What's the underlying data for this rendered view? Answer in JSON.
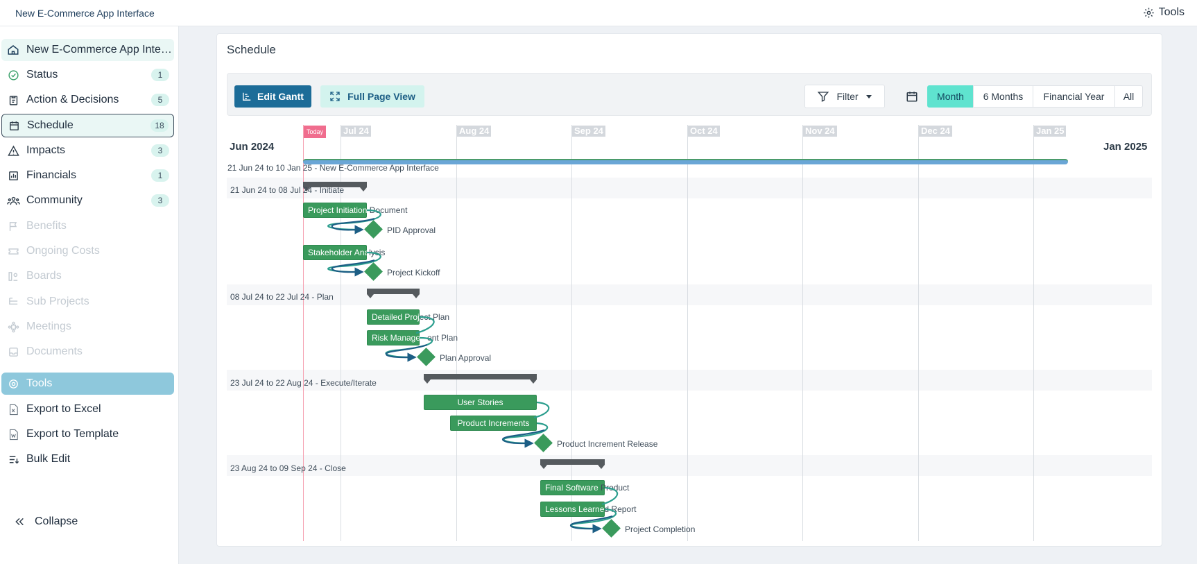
{
  "app": {
    "title": "New E-Commerce App Interface",
    "tools_label": "Tools"
  },
  "sidebar": {
    "items": [
      {
        "label": "New E-Commerce App Interface",
        "icon": "home-icon",
        "badge": ""
      },
      {
        "label": "Status",
        "icon": "check-circle-icon",
        "badge": "1"
      },
      {
        "label": "Action & Decisions",
        "icon": "clipboard-icon",
        "badge": "5"
      },
      {
        "label": "Schedule",
        "icon": "calendar-icon",
        "badge": "18"
      },
      {
        "label": "Impacts",
        "icon": "warning-icon",
        "badge": "3"
      },
      {
        "label": "Financials",
        "icon": "chart-icon",
        "badge": "1"
      },
      {
        "label": "Community",
        "icon": "people-icon",
        "badge": "3"
      },
      {
        "label": "Benefits",
        "icon": "flag-icon",
        "badge": ""
      },
      {
        "label": "Ongoing Costs",
        "icon": "ticket-icon",
        "badge": ""
      },
      {
        "label": "Boards",
        "icon": "boards-icon",
        "badge": ""
      },
      {
        "label": "Sub Projects",
        "icon": "tree-icon",
        "badge": ""
      },
      {
        "label": "Meetings",
        "icon": "meetings-icon",
        "badge": ""
      },
      {
        "label": "Documents",
        "icon": "inbox-icon",
        "badge": ""
      },
      {
        "label": "Tools",
        "icon": "gear-icon",
        "badge": ""
      },
      {
        "label": "Export to Excel",
        "icon": "excel-icon",
        "badge": ""
      },
      {
        "label": "Export to Template",
        "icon": "word-icon",
        "badge": ""
      },
      {
        "label": "Bulk Edit",
        "icon": "bulk-edit-icon",
        "badge": ""
      }
    ],
    "collapse_label": "Collapse"
  },
  "schedule": {
    "title": "Schedule",
    "toolbar": {
      "edit_label": "Edit Gantt",
      "full_label": "Full Page View",
      "filter_label": "Filter",
      "ranges": [
        "Month",
        "6 Months",
        "Financial Year",
        "All"
      ],
      "active_range": "Month"
    },
    "gantt": {
      "start_label": "Jun 2024",
      "end_label": "Jan 2025",
      "today_label": "Today",
      "months": [
        "Jul 24",
        "Aug 24",
        "Sep 24",
        "Oct 24",
        "Nov 24",
        "Dec 24",
        "Jan 25"
      ],
      "project_row": "21 Jun 24 to 10 Jan 25 - New E-Commerce App Interface",
      "phases": [
        {
          "label": "21 Jun 24 to 08 Jul 24 - Initiate"
        },
        {
          "label": "08 Jul 24 to 22 Jul 24 - Plan"
        },
        {
          "label": "23 Jul 24 to 22 Aug 24 - Execute/Iterate"
        },
        {
          "label": "23 Aug 24 to 09 Sep 24 - Close"
        }
      ],
      "tasks": [
        {
          "in": "Project Initiation",
          "out": " Document"
        },
        {
          "in": "Stakeholder Ana",
          "out": "lysis"
        },
        {
          "in": "Detailed Proj",
          "out": "ect Plan"
        },
        {
          "in": "Risk Managem",
          "out": "ent Plan"
        },
        {
          "in": "User Stories",
          "out": ""
        },
        {
          "in": "Product Increments",
          "out": ""
        },
        {
          "in": "Final Software",
          "out": " Product"
        },
        {
          "in": "Lessons Learne",
          "out": "d Report"
        }
      ],
      "milestones": [
        "PID Approval",
        "Project Kickoff",
        "Plan Approval",
        "Product Increment Release",
        "Project Completion"
      ]
    }
  },
  "colors": {
    "accent": "#1c6c98",
    "teal": "#5fe3cf",
    "task": "#3a9a5c",
    "today": "#f06d8e"
  }
}
